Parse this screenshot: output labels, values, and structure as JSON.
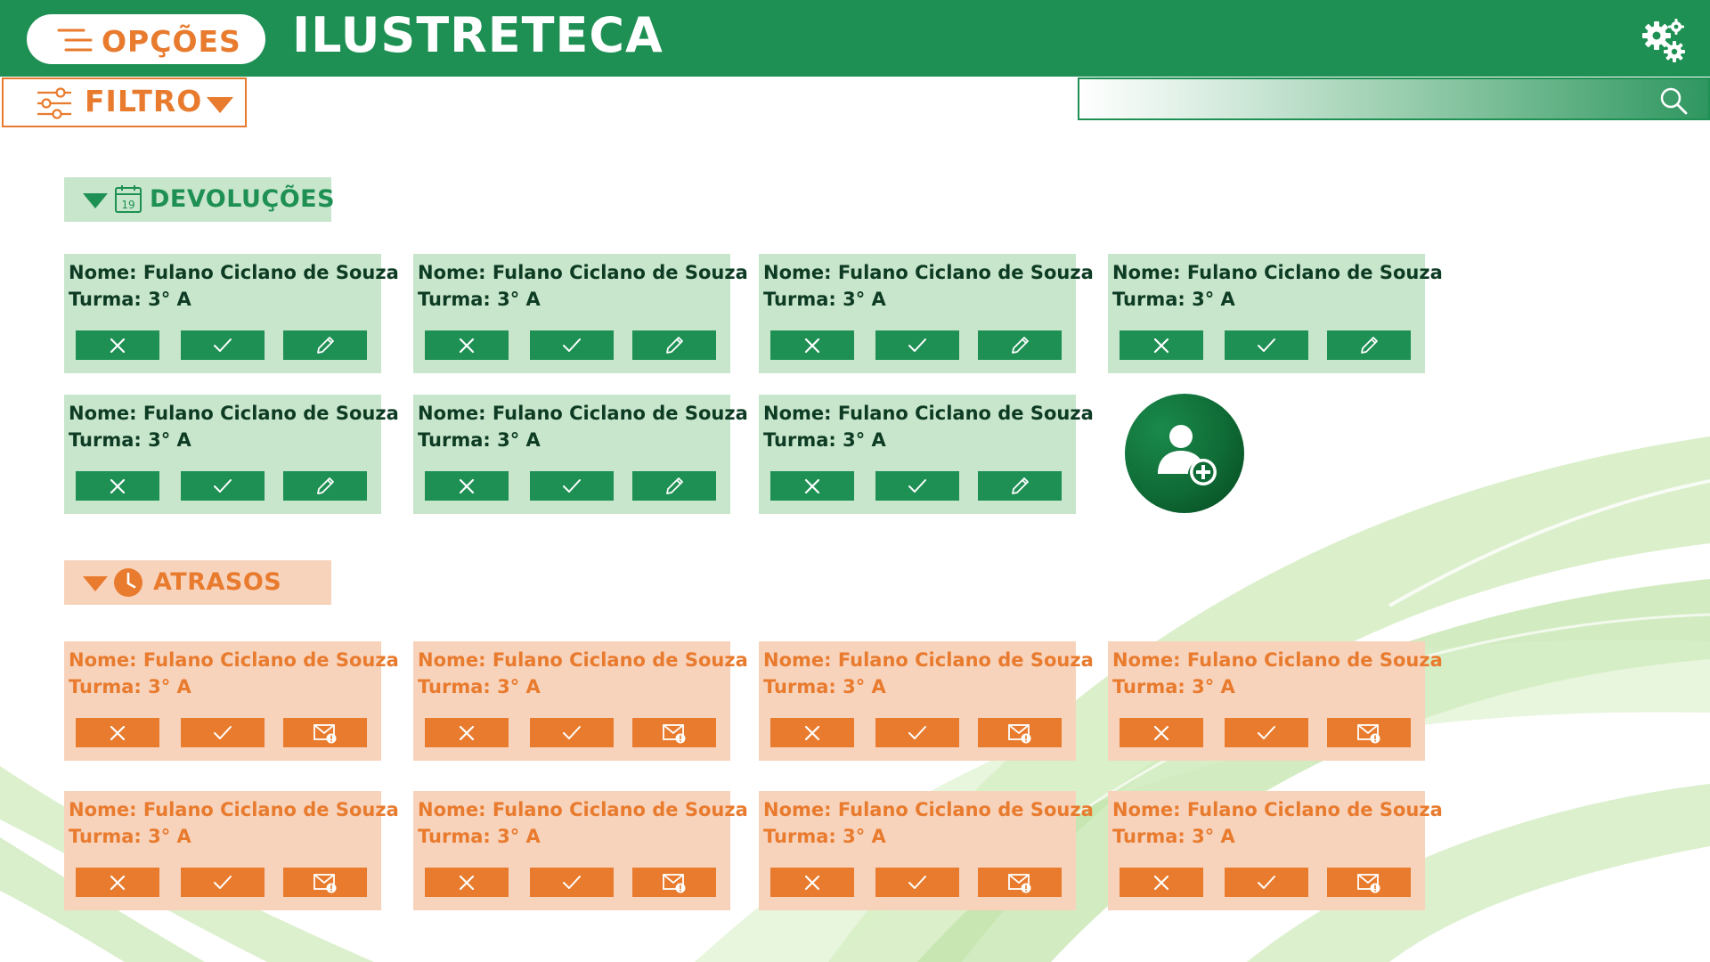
{
  "app": {
    "title": "ILUSTRETECA"
  },
  "header": {
    "menu_label": "OPÇÕES",
    "menu_icon": "hamburger-icon",
    "settings_icon": "gears-icon"
  },
  "toolbar": {
    "filter_label": "FILTRO",
    "filter_icon": "sliders-icon",
    "search_value": "",
    "search_placeholder": "",
    "search_icon": "magnifier-icon"
  },
  "colors": {
    "primary_green": "#1e9054",
    "light_green": "#c8e6cb",
    "accent_orange": "#e87b2e",
    "light_orange": "#f8d3bc"
  },
  "devolucoes": {
    "label": "DEVOLUÇÕES",
    "icon": "calendar-icon",
    "calendar_day": "19",
    "actions": [
      "close-icon",
      "check-icon",
      "pencil-icon"
    ],
    "cards": [
      {
        "nome": "Nome: Fulano Ciclano de Souza",
        "turma": "Turma: 3° A"
      },
      {
        "nome": "Nome: Fulano Ciclano de Souza",
        "turma": "Turma: 3° A"
      },
      {
        "nome": "Nome: Fulano Ciclano de Souza",
        "turma": "Turma: 3° A"
      },
      {
        "nome": "Nome: Fulano Ciclano de Souza",
        "turma": "Turma: 3° A"
      },
      {
        "nome": "Nome: Fulano Ciclano de Souza",
        "turma": "Turma: 3° A"
      },
      {
        "nome": "Nome: Fulano Ciclano de Souza",
        "turma": "Turma: 3° A"
      },
      {
        "nome": "Nome: Fulano Ciclano de Souza",
        "turma": "Turma: 3° A"
      }
    ],
    "add_icon": "add-user-icon"
  },
  "atrasos": {
    "label": "ATRASOS",
    "icon": "clock-icon",
    "actions": [
      "close-icon",
      "check-icon",
      "mail-alert-icon"
    ],
    "cards": [
      {
        "nome": "Nome: Fulano Ciclano de Souza",
        "turma": "Turma: 3° A"
      },
      {
        "nome": "Nome: Fulano Ciclano de Souza",
        "turma": "Turma: 3° A"
      },
      {
        "nome": "Nome: Fulano Ciclano de Souza",
        "turma": "Turma: 3° A"
      },
      {
        "nome": "Nome: Fulano Ciclano de Souza",
        "turma": "Turma: 3° A"
      },
      {
        "nome": "Nome: Fulano Ciclano de Souza",
        "turma": "Turma: 3° A"
      },
      {
        "nome": "Nome: Fulano Ciclano de Souza",
        "turma": "Turma: 3° A"
      },
      {
        "nome": "Nome: Fulano Ciclano de Souza",
        "turma": "Turma: 3° A"
      },
      {
        "nome": "Nome: Fulano Ciclano de Souza",
        "turma": "Turma: 3° A"
      }
    ]
  }
}
